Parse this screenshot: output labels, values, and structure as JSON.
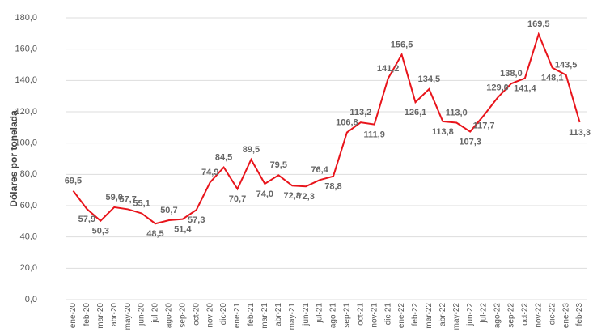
{
  "chart_data": {
    "type": "line",
    "y_label": "Dólares por tonelada",
    "categories": [
      "ene-20",
      "feb-20",
      "mar-20",
      "abr-20",
      "may-20",
      "jun-20",
      "jul-20",
      "ago-20",
      "sep-20",
      "oct-20",
      "nov-20",
      "dic-20",
      "ene-21",
      "feb-21",
      "mar-21",
      "abr-21",
      "may-21",
      "jun-21",
      "jul-21",
      "ago-21",
      "sep-21",
      "oct-21",
      "nov-21",
      "dic-21",
      "ene-22",
      "feb-22",
      "mar-22",
      "abr-22",
      "may-22",
      "jun-22",
      "jul-22",
      "ago-22",
      "sep-22",
      "oct-22",
      "nov-22",
      "dic-22",
      "ene-23",
      "feb-23"
    ],
    "values": [
      69.5,
      57.9,
      50.3,
      59.0,
      57.7,
      55.1,
      48.5,
      50.7,
      51.4,
      57.3,
      74.9,
      84.5,
      70.7,
      89.5,
      74.0,
      79.5,
      72.8,
      72.3,
      76.4,
      78.8,
      106.8,
      113.2,
      111.9,
      141.2,
      156.5,
      126.1,
      134.5,
      113.8,
      113.0,
      107.3,
      117.7,
      129.0,
      138.0,
      141.4,
      169.5,
      148.1,
      143.5,
      113.3
    ],
    "value_labels": [
      "69,5",
      "57,9",
      "50,3",
      "59,0",
      "57,7",
      "55,1",
      "48,5",
      "50,7",
      "51,4",
      "57,3",
      "74,9",
      "84,5",
      "70,7",
      "89,5",
      "74,0",
      "79,5",
      "72,8",
      "72,3",
      "76,4",
      "78,8",
      "106,8",
      "113,2",
      "111,9",
      "141,2",
      "156,5",
      "126,1",
      "134,5",
      "113,8",
      "113,0",
      "107,3",
      "117,7",
      "129,0",
      "138,0",
      "141,4",
      "169,5",
      "148,1",
      "143,5",
      "113,3"
    ],
    "color": "#e8141b",
    "ylim": [
      0,
      180
    ],
    "yticks": [
      {
        "value": 0,
        "label": "0,0"
      },
      {
        "value": 20,
        "label": "20,0"
      },
      {
        "value": 40,
        "label": "40,0"
      },
      {
        "value": 60,
        "label": "60,0"
      },
      {
        "value": 80,
        "label": "80,0"
      },
      {
        "value": 100,
        "label": "100,0"
      },
      {
        "value": 120,
        "label": "120,0"
      },
      {
        "value": 140,
        "label": "140,0"
      },
      {
        "value": 160,
        "label": "160,0"
      },
      {
        "value": 180,
        "label": "180,0"
      }
    ],
    "grid": true
  }
}
